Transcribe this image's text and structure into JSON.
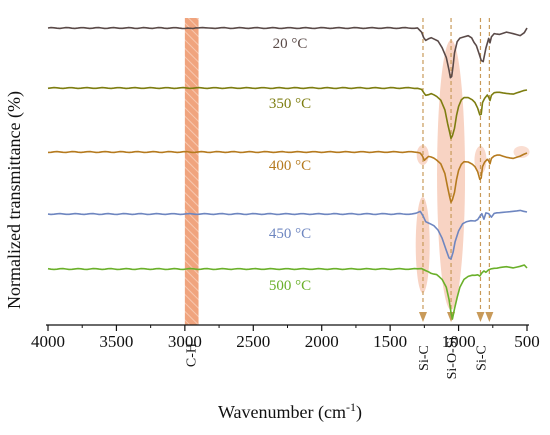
{
  "chart_data": {
    "type": "line",
    "title": "",
    "xlabel": "Wavenumber (cm",
    "xlabel_sup": "-1",
    "xlabel_end": ")",
    "ylabel": "Normalized transmittance (%)",
    "xlim": [
      4000,
      500
    ],
    "x_ticks": [
      4000,
      3500,
      3000,
      2500,
      2000,
      1500,
      1000,
      500
    ],
    "x_tick_labels": [
      "4000",
      "3500",
      "3000",
      "2500",
      "2000",
      "1500",
      "1000",
      "500"
    ],
    "y_ticks_shown": false,
    "series": [
      {
        "name": "20 °C",
        "color": "#5a4a48",
        "x": [
          4000,
          3020,
          3000,
          2980,
          2960,
          2920,
          2870,
          2850,
          2800,
          1300,
          1270,
          1255,
          1240,
          1200,
          1150,
          1120,
          1090,
          1070,
          1060,
          1050,
          1040,
          1030,
          1010,
          990,
          960,
          930,
          905,
          870,
          850,
          835,
          820,
          800,
          780,
          770,
          760,
          740,
          700,
          650,
          600,
          550,
          520,
          500
        ],
        "y_offset": [
          0,
          0,
          0.5,
          0.5,
          0.3,
          0,
          0,
          0,
          0,
          0,
          4,
          10,
          12,
          10,
          13,
          20,
          30,
          42,
          50,
          48,
          38,
          25,
          14,
          10,
          9,
          8,
          10,
          18,
          26,
          32,
          34,
          20,
          10,
          15,
          9,
          6,
          6,
          4,
          6,
          8,
          5,
          0
        ]
      },
      {
        "name": "350 °C",
        "color": "#7d7d10",
        "x": [
          4000,
          1300,
          1270,
          1255,
          1240,
          1200,
          1160,
          1130,
          1100,
          1080,
          1065,
          1055,
          1045,
          1030,
          1015,
          1000,
          980,
          960,
          930,
          900,
          880,
          860,
          845,
          835,
          825,
          810,
          790,
          780,
          770,
          760,
          740,
          700,
          650,
          600,
          550,
          500
        ],
        "y_offset": [
          0,
          0,
          1,
          5,
          7,
          6,
          8,
          12,
          22,
          35,
          45,
          50,
          48,
          40,
          28,
          18,
          12,
          10,
          10,
          12,
          15,
          20,
          27,
          26,
          15,
          10,
          7,
          9,
          13,
          7,
          5,
          4,
          5,
          6,
          4,
          2
        ]
      },
      {
        "name": "400 °C",
        "color": "#b57a1e",
        "x": [
          4000,
          1300,
          1280,
          1265,
          1250,
          1240,
          1220,
          1200,
          1160,
          1130,
          1100,
          1080,
          1065,
          1055,
          1045,
          1030,
          1015,
          1000,
          980,
          960,
          930,
          900,
          880,
          860,
          845,
          835,
          825,
          810,
          790,
          780,
          770,
          760,
          740,
          700,
          650,
          600,
          550,
          500
        ],
        "y_offset": [
          0,
          0,
          1,
          4,
          8,
          7,
          4,
          5,
          8,
          12,
          22,
          35,
          45,
          50,
          48,
          40,
          28,
          18,
          12,
          10,
          10,
          12,
          15,
          20,
          27,
          26,
          15,
          10,
          7,
          9,
          12,
          6,
          4,
          3,
          5,
          6,
          4,
          1
        ]
      },
      {
        "name": "450 °C",
        "color": "#6e86c0",
        "x": [
          4000,
          1340,
          1310,
          1280,
          1260,
          1240,
          1210,
          1180,
          1150,
          1120,
          1090,
          1070,
          1055,
          1040,
          1025,
          1000,
          970,
          940,
          910,
          880,
          860,
          845,
          830,
          815,
          800,
          780,
          760,
          740,
          700,
          650,
          600,
          550,
          500
        ],
        "y_offset": [
          0,
          0,
          -1,
          -3,
          2,
          8,
          10,
          12,
          16,
          24,
          36,
          44,
          45,
          38,
          28,
          17,
          10,
          8,
          7,
          7,
          6,
          2,
          0,
          5,
          -1,
          0,
          3,
          -1,
          -1,
          -2,
          -3,
          -4,
          -2
        ]
      },
      {
        "name": "500 °C",
        "color": "#6ab02a",
        "x": [
          4000,
          1300,
          1270,
          1240,
          1200,
          1160,
          1120,
          1090,
          1070,
          1055,
          1045,
          1030,
          1010,
          990,
          960,
          930,
          900,
          880,
          860,
          845,
          830,
          815,
          800,
          780,
          760,
          740,
          700,
          650,
          600,
          550,
          520,
          500
        ],
        "y_offset": [
          0,
          0,
          0,
          2,
          4,
          6,
          10,
          18,
          30,
          44,
          50,
          40,
          28,
          18,
          10,
          7,
          6,
          6,
          6,
          7,
          4,
          2,
          3,
          1,
          0,
          -1,
          -1,
          -2,
          -1,
          -3,
          -4,
          -1
        ]
      }
    ],
    "temperature_labels": [
      "20 °C",
      "350 °C",
      "400 °C",
      "450 °C",
      "500 °C"
    ],
    "annotations": [
      {
        "label": "C-H",
        "x_range": [
          3000,
          2900
        ],
        "style": "hatched-band",
        "color": "#f2a07a"
      },
      {
        "label": "Si-C",
        "x": 1260,
        "style": "dashed-arrow",
        "color": "#c89a5a"
      },
      {
        "label": "Si-O-Si",
        "x": 1055,
        "style": "dashed-arrow",
        "color": "#c89a5a"
      },
      {
        "label": "Si-C",
        "x": 840,
        "style": "dashed-arrow",
        "color": "#c89a5a"
      },
      {
        "label": "",
        "x": 775,
        "style": "dashed-arrow",
        "color": "#c89a5a"
      }
    ],
    "highlight_color": "#f6c8b4"
  }
}
